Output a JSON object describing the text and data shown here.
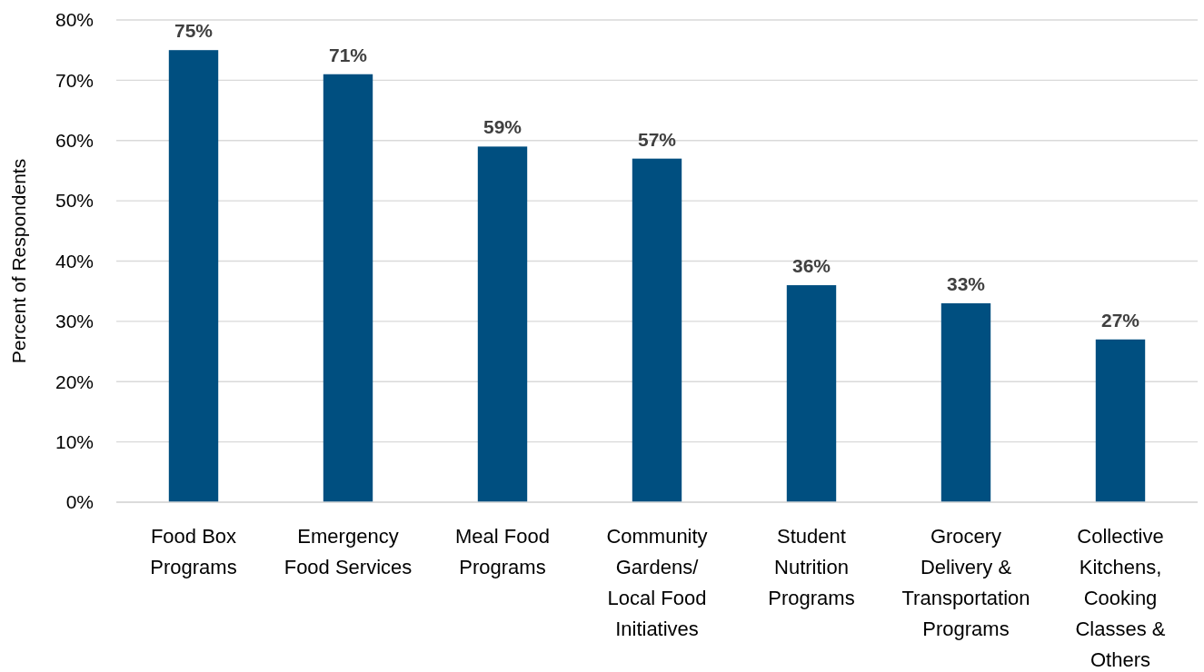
{
  "chart_data": {
    "type": "bar",
    "ylabel": "Percent of Respondents",
    "categories": [
      "Food Box Programs",
      "Emergency Food Services",
      "Meal Food Programs",
      "Community Gardens/ Local Food Initiatives",
      "Student Nutrition Programs",
      "Grocery Delivery & Transportation Programs",
      "Collective Kitchens, Cooking Classes & Others"
    ],
    "values": [
      75,
      71,
      59,
      57,
      36,
      33,
      27
    ],
    "value_labels": [
      "75%",
      "71%",
      "59%",
      "57%",
      "36%",
      "33%",
      "27%"
    ],
    "color": "#004f80",
    "ylim": [
      0,
      80
    ],
    "yticks": [
      {
        "value": 0,
        "label": "0%"
      },
      {
        "value": 10,
        "label": "10%"
      },
      {
        "value": 20,
        "label": "20%"
      },
      {
        "value": 30,
        "label": "30%"
      },
      {
        "value": 40,
        "label": "40%"
      },
      {
        "value": 50,
        "label": "50%"
      },
      {
        "value": 60,
        "label": "60%"
      },
      {
        "value": 70,
        "label": "70%"
      },
      {
        "value": 80,
        "label": "80%"
      }
    ],
    "grid": "y"
  }
}
